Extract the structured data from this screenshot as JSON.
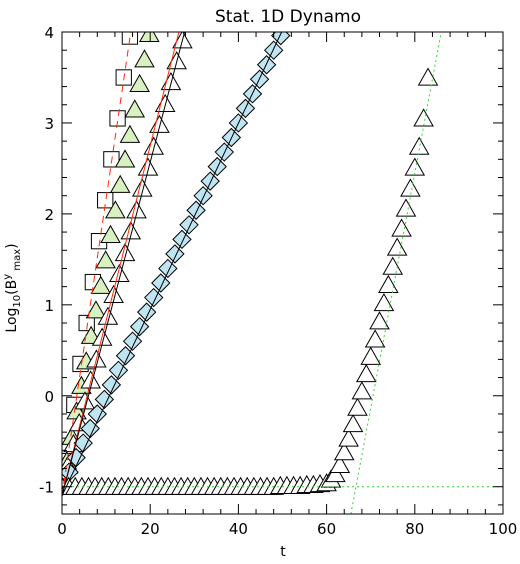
{
  "chart_data": {
    "type": "scatter",
    "title": "Stat. 1D Dynamo",
    "xlabel": "t",
    "ylabel_parts": [
      "Log",
      "10",
      "(B",
      "y",
      " max",
      ")"
    ],
    "xlim": [
      0,
      100
    ],
    "ylim": [
      -1.3,
      4.0
    ],
    "xticks": [
      0,
      20,
      40,
      60,
      80,
      100
    ],
    "yticks": [
      -1,
      0,
      1,
      2,
      3,
      4
    ],
    "grid": false,
    "series": [
      {
        "marker": "square",
        "face": "#ffffff",
        "edge": "#000000",
        "x": [
          0,
          1.4,
          2.8,
          4.2,
          5.6,
          7.0,
          8.4,
          9.8,
          11.2,
          12.6,
          14.0,
          15.4
        ],
        "y": [
          -1.0,
          -0.55,
          -0.1,
          0.35,
          0.8,
          1.25,
          1.7,
          2.15,
          2.6,
          3.05,
          3.5,
          3.95
        ]
      },
      {
        "marker": "triangle",
        "face": "#d9f0c0",
        "edge": "#000000",
        "x": [
          0,
          1.1,
          2.2,
          3.3,
          4.4,
          5.5,
          6.6,
          7.7,
          8.8,
          9.9,
          11.0,
          12.1,
          13.2,
          14.3,
          15.4,
          16.5,
          17.6,
          18.7,
          19.8
        ],
        "y": [
          -1.0,
          -0.72,
          -0.45,
          -0.17,
          0.11,
          0.38,
          0.66,
          0.94,
          1.21,
          1.49,
          1.77,
          2.04,
          2.32,
          2.6,
          2.87,
          3.15,
          3.43,
          3.7,
          3.98
        ]
      },
      {
        "marker": "triangle",
        "face": "#ffffff",
        "edge": "#000000",
        "x": [
          0,
          1.3,
          2.6,
          3.9,
          5.2,
          6.5,
          7.8,
          9.1,
          10.4,
          11.7,
          13.0,
          14.3,
          15.6,
          16.9,
          18.2,
          19.5,
          20.8,
          22.1,
          23.4,
          24.7,
          26.0,
          27.3
        ],
        "y": [
          -1.0,
          -0.77,
          -0.53,
          -0.3,
          -0.06,
          0.17,
          0.4,
          0.64,
          0.87,
          1.11,
          1.34,
          1.57,
          1.81,
          2.04,
          2.28,
          2.51,
          2.74,
          2.98,
          3.21,
          3.45,
          3.68,
          3.91
        ]
      },
      {
        "marker": "diamond",
        "face": "#bfe4f2",
        "edge": "#000000",
        "x": [
          0,
          1.6,
          3.2,
          4.8,
          6.4,
          8.0,
          9.6,
          11.2,
          12.8,
          14.4,
          16.0,
          17.6,
          19.2,
          20.8,
          22.4,
          24.0,
          25.6,
          27.2,
          28.8,
          30.4,
          32.0,
          33.6,
          35.2,
          36.8,
          38.4,
          40.0,
          41.6,
          43.2,
          44.8,
          46.4,
          48.0,
          49.6
        ],
        "y": [
          -1.0,
          -0.84,
          -0.68,
          -0.52,
          -0.36,
          -0.2,
          -0.04,
          0.12,
          0.28,
          0.44,
          0.6,
          0.76,
          0.92,
          1.08,
          1.24,
          1.4,
          1.56,
          1.72,
          1.88,
          2.04,
          2.2,
          2.36,
          2.52,
          2.68,
          2.84,
          3.0,
          3.16,
          3.32,
          3.48,
          3.64,
          3.8,
          3.96
        ]
      },
      {
        "marker": "triangle",
        "face": "#ffffff",
        "edge": "#000000",
        "x": [
          0,
          1.5,
          3,
          4.5,
          6,
          7.5,
          9,
          10.5,
          12,
          13.5,
          15,
          16.5,
          18,
          19.5,
          21,
          22.5,
          24,
          25.5,
          27,
          28.5,
          30,
          31.5,
          33,
          34.5,
          36,
          37.5,
          39,
          40.5,
          42,
          43.5,
          45,
          46.5,
          48,
          49.5,
          51,
          52.5,
          54,
          55.5,
          57,
          58.5,
          60,
          61,
          62,
          63,
          64,
          65,
          66,
          67,
          68,
          69,
          70,
          71,
          72,
          73,
          74,
          75,
          76,
          77,
          78,
          79,
          80,
          81,
          82,
          83
        ],
        "y": [
          -1.0,
          -1.0,
          -1.0,
          -1.0,
          -1.0,
          -1.0,
          -1.0,
          -1.0,
          -1.0,
          -1.0,
          -1.0,
          -1.0,
          -1.0,
          -1.0,
          -1.0,
          -1.0,
          -1.0,
          -1.0,
          -1.0,
          -1.0,
          -1.0,
          -1.0,
          -1.0,
          -1.0,
          -1.0,
          -1.0,
          -1.0,
          -1.0,
          -1.0,
          -1.0,
          -1.0,
          -1.0,
          -1.0,
          -0.99,
          -0.99,
          -0.99,
          -0.99,
          -0.98,
          -0.98,
          -0.97,
          -0.96,
          -0.92,
          -0.86,
          -0.76,
          -0.62,
          -0.47,
          -0.31,
          -0.13,
          0.05,
          0.24,
          0.43,
          0.62,
          0.82,
          1.02,
          1.22,
          1.42,
          1.63,
          1.84,
          2.06,
          2.28,
          2.51,
          2.74,
          3.05,
          3.5
        ]
      }
    ],
    "reference_lines": [
      {
        "color": "#ff2a00",
        "style": "dashed",
        "x": [
          0,
          15.6
        ],
        "y": [
          -1.1,
          4.0
        ]
      },
      {
        "color": "#ff2a00",
        "style": "solid",
        "x": [
          0,
          26.5
        ],
        "y": [
          -1.1,
          4.0
        ]
      },
      {
        "color": "#000000",
        "style": "solid",
        "x": [
          0,
          27.8
        ],
        "y": [
          -1.1,
          4.0
        ]
      },
      {
        "color": "#000000",
        "style": "solid",
        "x": [
          0,
          49.8
        ],
        "y": [
          -1.1,
          4.0
        ]
      },
      {
        "color": "#35d235",
        "style": "dotted",
        "x": [
          0,
          100
        ],
        "y": [
          -1.0,
          -1.0
        ]
      },
      {
        "color": "#35d235",
        "style": "dotted",
        "x": [
          65.5,
          86.0
        ],
        "y": [
          -1.3,
          4.0
        ]
      }
    ]
  }
}
